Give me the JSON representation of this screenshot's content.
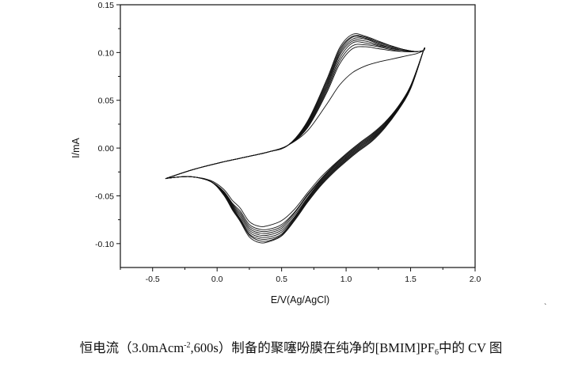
{
  "chart_data": {
    "type": "line",
    "title": "",
    "xlabel": "E/V(Ag/AgCl)",
    "ylabel": "I/mA",
    "xlim": [
      -0.75,
      2.0
    ],
    "ylim": [
      -0.125,
      0.15
    ],
    "x_ticks": [
      "-0.5",
      "0.0",
      "0.5",
      "1.0",
      "1.5",
      "2.0"
    ],
    "y_ticks": [
      "0.15",
      "0.10",
      "0.05",
      "0.00",
      "-0.05",
      "-0.10"
    ],
    "grid": false,
    "legend": "none",
    "line_color": "#111111",
    "scan_range": [
      -0.4,
      1.6
    ],
    "cycles": 9,
    "series": [
      {
        "cycle": 1,
        "forward": {
          "x": [
            -0.4,
            -0.2,
            0.0,
            0.2,
            0.4,
            0.55,
            0.7,
            0.85,
            0.95,
            1.05,
            1.15,
            1.25,
            1.35,
            1.45,
            1.55,
            1.6
          ],
          "y": [
            -0.032,
            -0.023,
            -0.016,
            -0.01,
            -0.004,
            0.003,
            0.018,
            0.046,
            0.066,
            0.079,
            0.086,
            0.09,
            0.093,
            0.096,
            0.099,
            0.102
          ]
        },
        "reverse": {
          "x": [
            1.6,
            1.5,
            1.4,
            1.3,
            1.2,
            1.1,
            1.0,
            0.9,
            0.8,
            0.7,
            0.6,
            0.5,
            0.4,
            0.33,
            0.25,
            0.18,
            0.12,
            0.05,
            -0.05,
            -0.2,
            -0.35,
            -0.4
          ],
          "y": [
            0.102,
            0.065,
            0.043,
            0.027,
            0.015,
            0.005,
            -0.006,
            -0.018,
            -0.031,
            -0.047,
            -0.064,
            -0.076,
            -0.081,
            -0.082,
            -0.077,
            -0.063,
            -0.055,
            -0.043,
            -0.034,
            -0.03,
            -0.031,
            -0.032
          ]
        }
      },
      {
        "cycle": 2,
        "forward": {
          "x": [
            -0.4,
            -0.2,
            0.0,
            0.2,
            0.4,
            0.55,
            0.7,
            0.85,
            0.95,
            1.05,
            1.15,
            1.25,
            1.35,
            1.45,
            1.55,
            1.6
          ],
          "y": [
            -0.032,
            -0.023,
            -0.016,
            -0.01,
            -0.004,
            0.003,
            0.021,
            0.058,
            0.088,
            0.104,
            0.106,
            0.104,
            0.102,
            0.101,
            0.101,
            0.102
          ]
        },
        "reverse": {
          "x": [
            1.6,
            1.5,
            1.4,
            1.3,
            1.2,
            1.1,
            1.0,
            0.9,
            0.8,
            0.7,
            0.6,
            0.5,
            0.4,
            0.33,
            0.25,
            0.18,
            0.12,
            0.05,
            -0.05,
            -0.2,
            -0.35,
            -0.4
          ],
          "y": [
            0.102,
            0.065,
            0.042,
            0.026,
            0.014,
            0.004,
            -0.007,
            -0.019,
            -0.033,
            -0.049,
            -0.067,
            -0.08,
            -0.085,
            -0.085,
            -0.08,
            -0.066,
            -0.058,
            -0.045,
            -0.035,
            -0.03,
            -0.031,
            -0.032
          ]
        }
      },
      {
        "cycle": 3,
        "forward": {
          "x": [
            -0.4,
            -0.2,
            0.0,
            0.2,
            0.4,
            0.55,
            0.7,
            0.85,
            0.95,
            1.05,
            1.15,
            1.25,
            1.35,
            1.45,
            1.55,
            1.6
          ],
          "y": [
            -0.032,
            -0.023,
            -0.016,
            -0.01,
            -0.004,
            0.003,
            0.022,
            0.06,
            0.091,
            0.107,
            0.108,
            0.106,
            0.103,
            0.101,
            0.101,
            0.102
          ]
        },
        "reverse": {
          "x": [
            1.6,
            1.5,
            1.4,
            1.3,
            1.2,
            1.1,
            1.0,
            0.9,
            0.8,
            0.7,
            0.6,
            0.5,
            0.4,
            0.33,
            0.25,
            0.18,
            0.12,
            0.05,
            -0.05,
            -0.2,
            -0.35,
            -0.4
          ],
          "y": [
            0.102,
            0.065,
            0.042,
            0.026,
            0.013,
            0.003,
            -0.008,
            -0.02,
            -0.034,
            -0.05,
            -0.068,
            -0.082,
            -0.087,
            -0.087,
            -0.082,
            -0.068,
            -0.059,
            -0.046,
            -0.035,
            -0.03,
            -0.031,
            -0.032
          ]
        }
      },
      {
        "cycle": 4,
        "forward": {
          "x": [
            -0.4,
            -0.2,
            0.0,
            0.2,
            0.4,
            0.55,
            0.7,
            0.85,
            0.95,
            1.05,
            1.15,
            1.25,
            1.35,
            1.45,
            1.55,
            1.6
          ],
          "y": [
            -0.032,
            -0.023,
            -0.016,
            -0.01,
            -0.004,
            0.003,
            0.023,
            0.062,
            0.094,
            0.11,
            0.11,
            0.107,
            0.104,
            0.102,
            0.101,
            0.102
          ]
        },
        "reverse": {
          "x": [
            1.6,
            1.5,
            1.4,
            1.3,
            1.2,
            1.1,
            1.0,
            0.9,
            0.8,
            0.7,
            0.6,
            0.5,
            0.4,
            0.33,
            0.25,
            0.18,
            0.12,
            0.05,
            -0.05,
            -0.2,
            -0.35,
            -0.4
          ],
          "y": [
            0.102,
            0.064,
            0.041,
            0.025,
            0.012,
            0.002,
            -0.009,
            -0.021,
            -0.035,
            -0.052,
            -0.07,
            -0.084,
            -0.089,
            -0.089,
            -0.084,
            -0.07,
            -0.06,
            -0.046,
            -0.035,
            -0.03,
            -0.031,
            -0.032
          ]
        }
      },
      {
        "cycle": 5,
        "forward": {
          "x": [
            -0.4,
            -0.2,
            0.0,
            0.2,
            0.4,
            0.55,
            0.7,
            0.85,
            0.95,
            1.05,
            1.15,
            1.25,
            1.35,
            1.45,
            1.55,
            1.6
          ],
          "y": [
            -0.032,
            -0.023,
            -0.016,
            -0.01,
            -0.004,
            0.003,
            0.024,
            0.064,
            0.097,
            0.112,
            0.112,
            0.108,
            0.105,
            0.102,
            0.101,
            0.102
          ]
        },
        "reverse": {
          "x": [
            1.6,
            1.5,
            1.4,
            1.3,
            1.2,
            1.1,
            1.0,
            0.9,
            0.8,
            0.7,
            0.6,
            0.5,
            0.4,
            0.33,
            0.25,
            0.18,
            0.12,
            0.05,
            -0.05,
            -0.2,
            -0.35,
            -0.4
          ],
          "y": [
            0.102,
            0.064,
            0.041,
            0.024,
            0.011,
            0.001,
            -0.01,
            -0.022,
            -0.036,
            -0.053,
            -0.072,
            -0.086,
            -0.091,
            -0.091,
            -0.086,
            -0.072,
            -0.061,
            -0.047,
            -0.035,
            -0.03,
            -0.031,
            -0.032
          ]
        }
      },
      {
        "cycle": 6,
        "forward": {
          "x": [
            -0.4,
            -0.2,
            0.0,
            0.2,
            0.4,
            0.55,
            0.7,
            0.85,
            0.95,
            1.05,
            1.15,
            1.25,
            1.35,
            1.45,
            1.55,
            1.6
          ],
          "y": [
            -0.032,
            -0.023,
            -0.016,
            -0.01,
            -0.004,
            0.003,
            0.025,
            0.066,
            0.099,
            0.114,
            0.114,
            0.109,
            0.105,
            0.102,
            0.101,
            0.102
          ]
        },
        "reverse": {
          "x": [
            1.6,
            1.5,
            1.4,
            1.3,
            1.2,
            1.1,
            1.0,
            0.9,
            0.8,
            0.7,
            0.6,
            0.5,
            0.4,
            0.33,
            0.25,
            0.18,
            0.12,
            0.05,
            -0.05,
            -0.2,
            -0.35,
            -0.4
          ],
          "y": [
            0.102,
            0.063,
            0.04,
            0.023,
            0.01,
            0.0,
            -0.011,
            -0.023,
            -0.037,
            -0.054,
            -0.073,
            -0.088,
            -0.093,
            -0.093,
            -0.088,
            -0.074,
            -0.062,
            -0.047,
            -0.035,
            -0.03,
            -0.031,
            -0.032
          ]
        }
      },
      {
        "cycle": 7,
        "forward": {
          "x": [
            -0.4,
            -0.2,
            0.0,
            0.2,
            0.4,
            0.55,
            0.7,
            0.85,
            0.95,
            1.05,
            1.15,
            1.25,
            1.35,
            1.45,
            1.55,
            1.6
          ],
          "y": [
            -0.032,
            -0.023,
            -0.016,
            -0.01,
            -0.004,
            0.003,
            0.026,
            0.068,
            0.101,
            0.116,
            0.115,
            0.11,
            0.106,
            0.103,
            0.101,
            0.102
          ]
        },
        "reverse": {
          "x": [
            1.6,
            1.5,
            1.4,
            1.3,
            1.2,
            1.1,
            1.0,
            0.9,
            0.8,
            0.7,
            0.6,
            0.5,
            0.4,
            0.33,
            0.25,
            0.18,
            0.12,
            0.05,
            -0.05,
            -0.2,
            -0.35,
            -0.4
          ],
          "y": [
            0.102,
            0.063,
            0.04,
            0.023,
            0.009,
            -0.001,
            -0.012,
            -0.024,
            -0.038,
            -0.055,
            -0.074,
            -0.09,
            -0.095,
            -0.095,
            -0.09,
            -0.075,
            -0.063,
            -0.048,
            -0.035,
            -0.03,
            -0.031,
            -0.032
          ]
        }
      },
      {
        "cycle": 8,
        "forward": {
          "x": [
            -0.4,
            -0.2,
            0.0,
            0.2,
            0.4,
            0.55,
            0.7,
            0.85,
            0.95,
            1.05,
            1.15,
            1.25,
            1.35,
            1.45,
            1.55,
            1.6
          ],
          "y": [
            -0.032,
            -0.023,
            -0.016,
            -0.01,
            -0.004,
            0.003,
            0.027,
            0.07,
            0.103,
            0.117,
            0.116,
            0.111,
            0.107,
            0.103,
            0.101,
            0.102
          ]
        },
        "reverse": {
          "x": [
            1.6,
            1.5,
            1.4,
            1.3,
            1.2,
            1.1,
            1.0,
            0.9,
            0.8,
            0.7,
            0.6,
            0.5,
            0.4,
            0.33,
            0.25,
            0.18,
            0.12,
            0.05,
            -0.05,
            -0.2,
            -0.35,
            -0.4
          ],
          "y": [
            0.102,
            0.062,
            0.039,
            0.022,
            0.008,
            -0.002,
            -0.013,
            -0.025,
            -0.039,
            -0.056,
            -0.075,
            -0.091,
            -0.097,
            -0.097,
            -0.091,
            -0.076,
            -0.064,
            -0.048,
            -0.035,
            -0.03,
            -0.031,
            -0.032
          ]
        }
      },
      {
        "cycle": 9,
        "forward": {
          "x": [
            -0.4,
            -0.2,
            0.0,
            0.2,
            0.4,
            0.55,
            0.7,
            0.85,
            0.95,
            1.05,
            1.15,
            1.25,
            1.35,
            1.45,
            1.55,
            1.6
          ],
          "y": [
            -0.032,
            -0.023,
            -0.016,
            -0.01,
            -0.004,
            0.003,
            0.028,
            0.072,
            0.105,
            0.119,
            0.117,
            0.112,
            0.107,
            0.103,
            0.101,
            0.102
          ]
        },
        "reverse": {
          "x": [
            1.6,
            1.5,
            1.4,
            1.3,
            1.2,
            1.1,
            1.0,
            0.9,
            0.8,
            0.7,
            0.6,
            0.5,
            0.4,
            0.33,
            0.25,
            0.18,
            0.12,
            0.05,
            -0.05,
            -0.2,
            -0.35,
            -0.4
          ],
          "y": [
            0.102,
            0.062,
            0.039,
            0.021,
            0.007,
            -0.003,
            -0.014,
            -0.026,
            -0.04,
            -0.057,
            -0.076,
            -0.092,
            -0.098,
            -0.099,
            -0.093,
            -0.077,
            -0.065,
            -0.049,
            -0.035,
            -0.03,
            -0.031,
            -0.032
          ]
        }
      }
    ]
  },
  "caption": {
    "prefix": "恒电流（3.0mAcm",
    "sup": "-2",
    "middle": ",600s）制备的聚噻吩膜在纯净的[BMIM]PF",
    "sub": "6",
    "suffix": "中的 CV 图"
  },
  "stray_mark": "`"
}
